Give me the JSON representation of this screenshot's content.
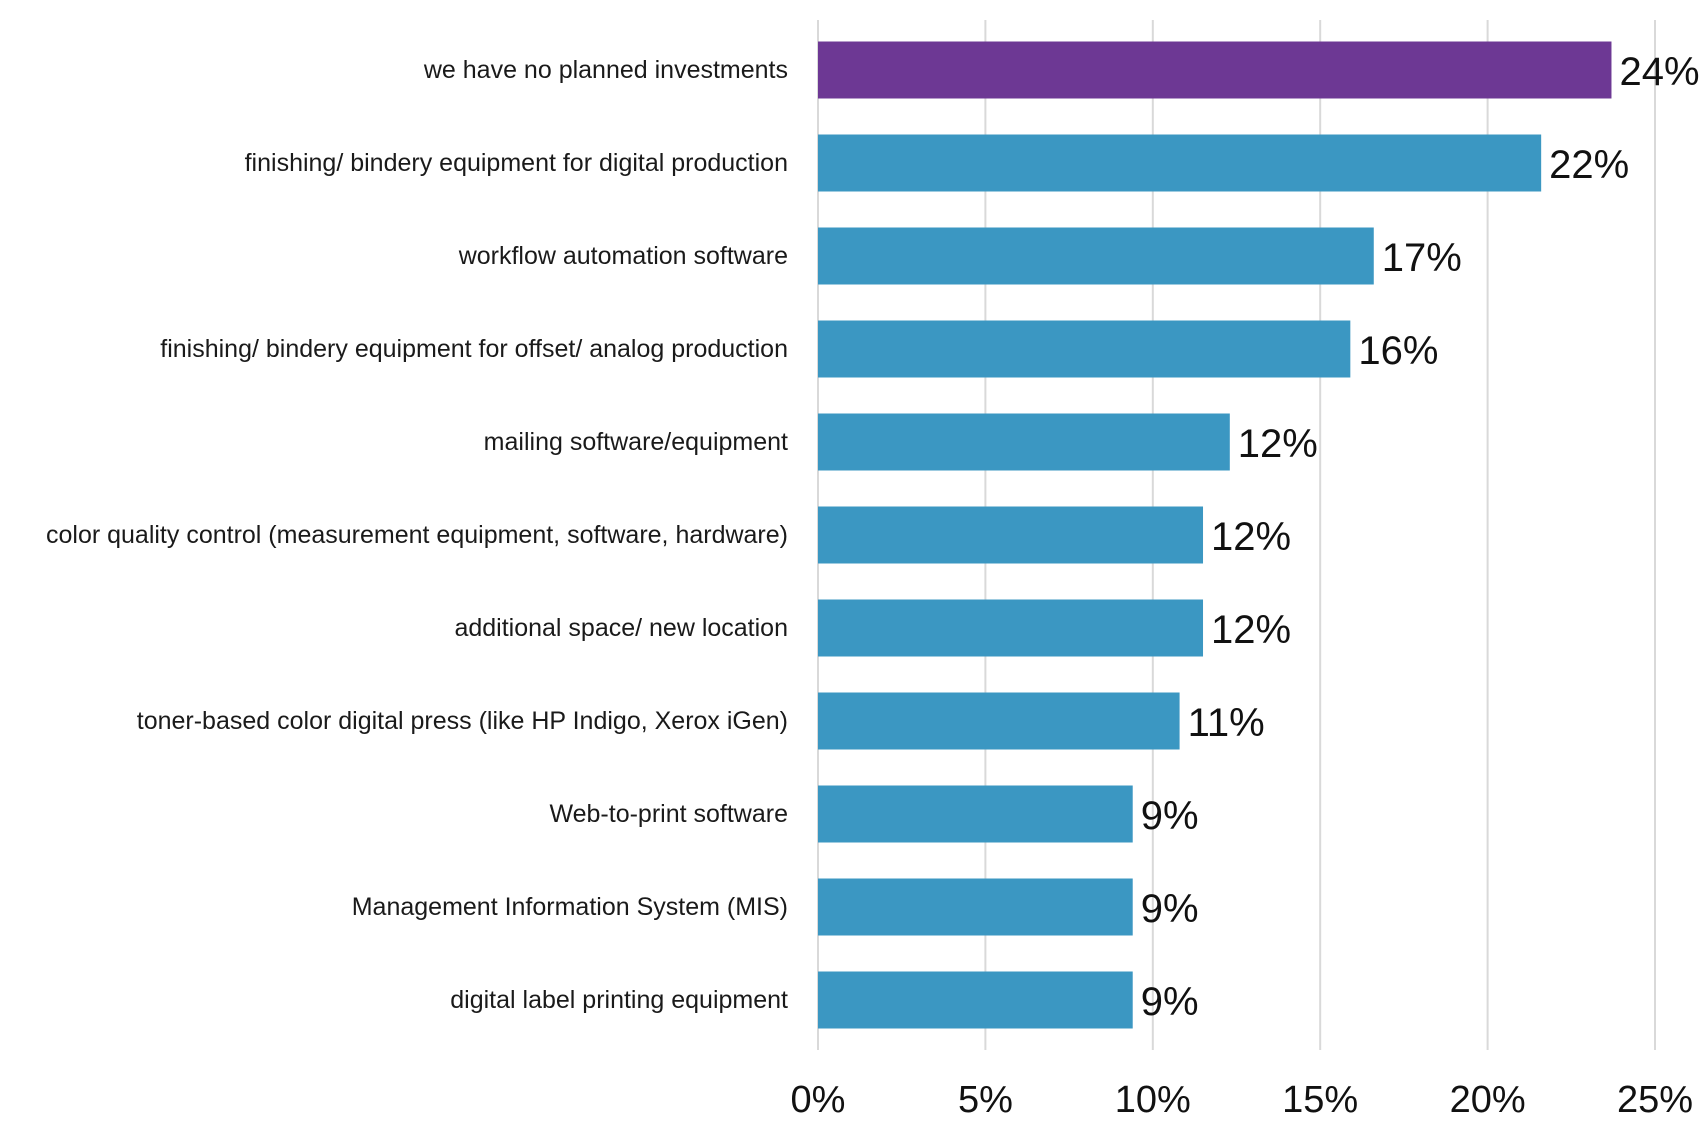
{
  "colors": {
    "highlight": "#6d3894",
    "bar": "#3b97c2",
    "grid": "#d9d9d9",
    "text": "#111111"
  },
  "chart_data": {
    "type": "bar",
    "orientation": "horizontal",
    "title": "",
    "xlabel": "",
    "ylabel": "",
    "xlim": [
      0,
      25
    ],
    "grid": true,
    "categories": [
      "we have no planned investments",
      "finishing/ bindery equipment for digital production",
      "workflow automation software",
      "finishing/ bindery equipment for offset/ analog production",
      "mailing software/equipment",
      "color quality control (measurement equipment, software, hardware)",
      "additional space/ new location",
      "toner-based color digital press (like HP Indigo, Xerox iGen)",
      "Web-to-print software",
      "Management Information System (MIS)",
      "digital label printing equipment"
    ],
    "values": [
      23.7,
      21.6,
      16.6,
      15.9,
      12.3,
      11.5,
      11.5,
      10.8,
      9.4,
      9.4,
      9.4
    ],
    "data_labels": [
      "24%",
      "22%",
      "17%",
      "16%",
      "12%",
      "12%",
      "12%",
      "11%",
      "9%",
      "9%",
      "9%"
    ],
    "highlight_index": 0,
    "x_ticks": [
      0,
      5,
      10,
      15,
      20,
      25
    ],
    "x_tick_labels": [
      "0%",
      "5%",
      "10%",
      "15%",
      "20%",
      "25%"
    ]
  }
}
